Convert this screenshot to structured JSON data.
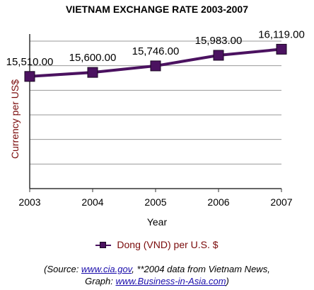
{
  "chart_data": {
    "type": "line",
    "title": "VIETNAM EXCHANGE RATE 2003-2007",
    "xlabel": "Year",
    "ylabel": "Currency per US$",
    "categories": [
      "2003",
      "2004",
      "2005",
      "2006",
      "2007"
    ],
    "series": [
      {
        "name": "Dong (VND) per U.S. $",
        "values": [
          15510,
          15600,
          15746,
          15983,
          16119
        ],
        "data_labels": [
          "15,510.00",
          "15,600.00",
          "15,746.00",
          "15,983.00",
          "16,119.00"
        ],
        "color": "#4b1260"
      }
    ],
    "ylim": [
      13000,
      16300
    ],
    "grid": true,
    "legend": "bottom"
  },
  "source": {
    "prefix": "(Source: ",
    "link1": "www.cia.gov",
    "middle": ", **2004 data from Vietnam News,",
    "line2_prefix": "Graph: ",
    "link2": "www.Business-in-Asia.com",
    "suffix": ")"
  }
}
